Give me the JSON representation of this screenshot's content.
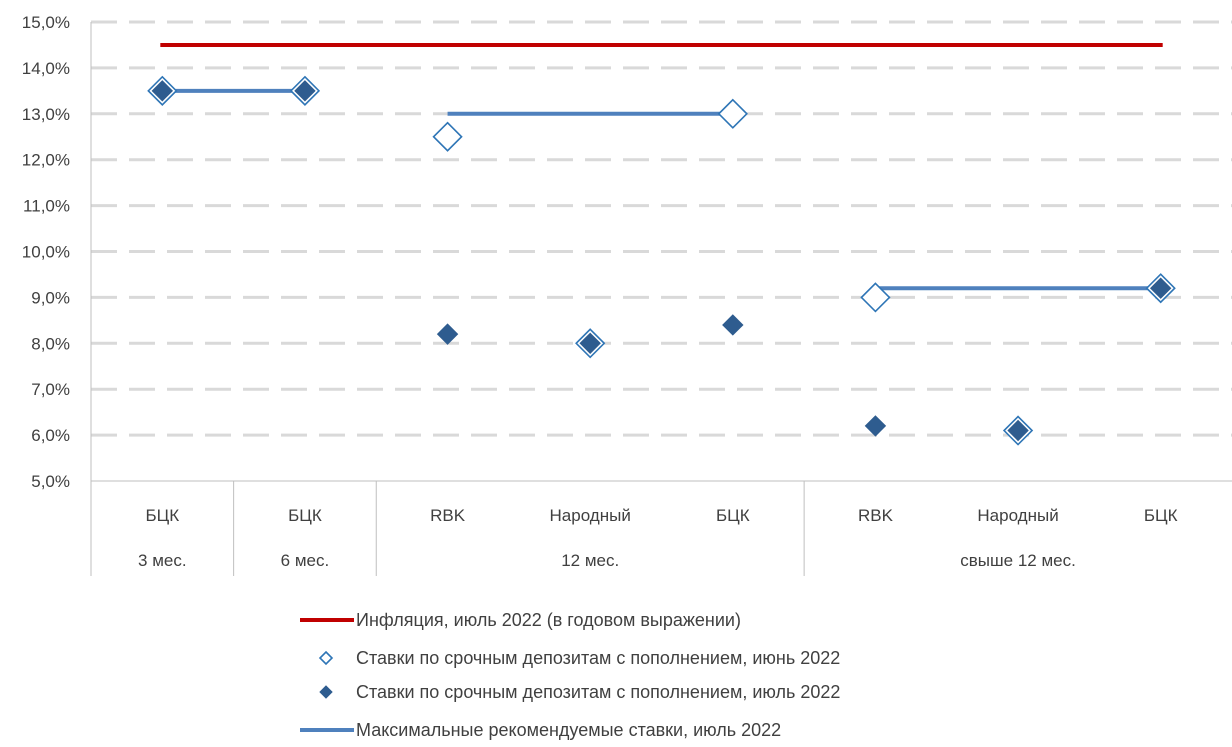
{
  "chart_data": {
    "type": "scatter",
    "y_axis": {
      "min": 5,
      "max": 15,
      "step": 1,
      "ticks": [
        "5,0%",
        "6,0%",
        "7,0%",
        "8,0%",
        "9,0%",
        "10,0%",
        "11,0%",
        "12,0%",
        "13,0%",
        "14,0%",
        "15,0%"
      ],
      "grid": "dashed"
    },
    "categories": [
      "БЦК",
      "БЦК",
      "RBK",
      "Народный",
      "БЦК",
      "RBK",
      "Народный",
      "БЦК"
    ],
    "groups": [
      {
        "label": "3 мес.",
        "span": 1
      },
      {
        "label": "6 мес.",
        "span": 1
      },
      {
        "label": "12 мес.",
        "span": 3
      },
      {
        "label": "свыше 12 мес.",
        "span": 3
      }
    ],
    "series": [
      {
        "name": "Инфляция, июль 2022 (в годовом выражении)",
        "kind": "line",
        "color": "#c00000",
        "values": [
          14.5,
          14.5,
          14.5,
          14.5,
          14.5,
          14.5,
          14.5,
          14.5
        ]
      },
      {
        "name": "Ставки по срочным депозитам с пополнением, июнь 2022",
        "kind": "marker-hollow-diamond",
        "color": "#2e75b6",
        "values": [
          13.5,
          13.5,
          12.5,
          8.0,
          13.0,
          9.0,
          6.1,
          9.2
        ]
      },
      {
        "name": "Ставки по срочным депозитам с пополнением, июль 2022",
        "kind": "marker-filled-diamond",
        "color": "#2e5c8f",
        "values": [
          13.5,
          13.5,
          8.2,
          8.0,
          8.4,
          6.2,
          6.1,
          9.2
        ]
      },
      {
        "name": "Максимальные рекомендуемые ставки, июль 2022",
        "kind": "line",
        "color": "#4f81bd",
        "values": [
          13.5,
          13.5,
          13.0,
          13.0,
          13.0,
          9.2,
          9.2,
          9.2
        ]
      }
    ],
    "legend_position": "bottom"
  }
}
